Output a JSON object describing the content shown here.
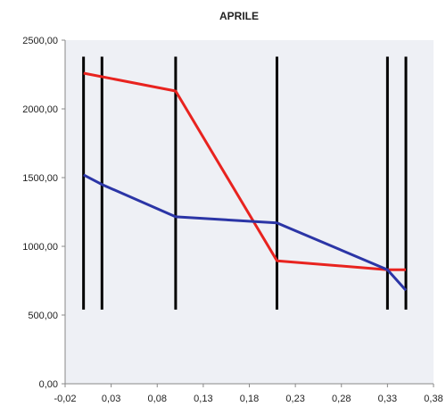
{
  "chart_data": {
    "type": "line",
    "title": "APRILE",
    "xlabel": "",
    "ylabel": "",
    "xlim": [
      -0.02,
      0.38
    ],
    "ylim": [
      0,
      2500
    ],
    "x_ticks": [
      "-0,02",
      "0,03",
      "0,08",
      "0,13",
      "0,18",
      "0,23",
      "0,28",
      "0,33",
      "0,38"
    ],
    "y_ticks": [
      "0,00",
      "500,00",
      "1000,00",
      "1500,00",
      "2000,00",
      "2500,00"
    ],
    "grid": false,
    "legend": "none",
    "plot_background": "#eef0f5",
    "series": [
      {
        "color": "#e8231f",
        "points": [
          [
            0.0,
            2260
          ],
          [
            0.1,
            2130
          ],
          [
            0.21,
            895
          ],
          [
            0.33,
            830
          ],
          [
            0.35,
            830
          ]
        ]
      },
      {
        "color": "#2b35a6",
        "points": [
          [
            0.0,
            1520
          ],
          [
            0.02,
            1450
          ],
          [
            0.1,
            1215
          ],
          [
            0.21,
            1170
          ],
          [
            0.33,
            830
          ],
          [
            0.35,
            680
          ]
        ]
      }
    ],
    "vertical_lines": {
      "color": "#000000",
      "x": [
        0.0,
        0.02,
        0.1,
        0.21,
        0.33,
        0.35
      ],
      "y_range": [
        540,
        2380
      ]
    }
  }
}
